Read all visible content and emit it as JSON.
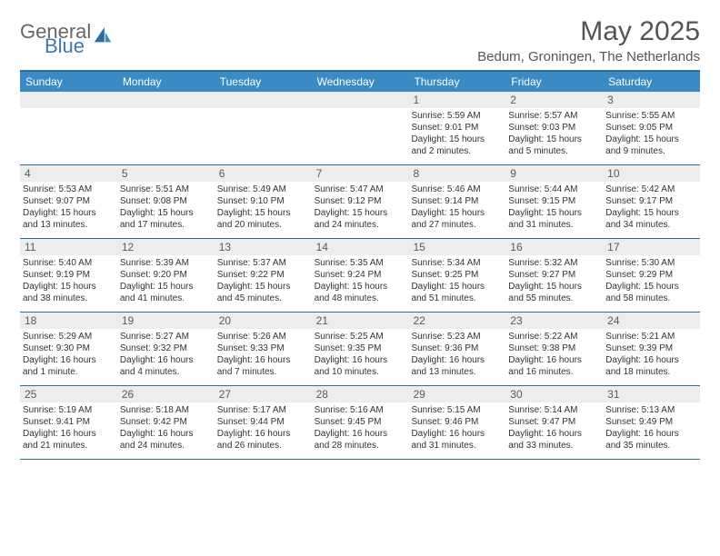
{
  "logo": {
    "text1": "General",
    "text2": "Blue"
  },
  "title": "May 2025",
  "location": "Bedum, Groningen, The Netherlands",
  "colors": {
    "header_bg": "#3a8ac4",
    "border": "#2e6da4",
    "daynum_bg": "#eceded",
    "text": "#333333",
    "logo_gray": "#666666",
    "logo_blue": "#3a7ab8"
  },
  "weekdays": [
    "Sunday",
    "Monday",
    "Tuesday",
    "Wednesday",
    "Thursday",
    "Friday",
    "Saturday"
  ],
  "weeks": [
    [
      {
        "day": "",
        "sunrise": "",
        "sunset": "",
        "daylight": ""
      },
      {
        "day": "",
        "sunrise": "",
        "sunset": "",
        "daylight": ""
      },
      {
        "day": "",
        "sunrise": "",
        "sunset": "",
        "daylight": ""
      },
      {
        "day": "",
        "sunrise": "",
        "sunset": "",
        "daylight": ""
      },
      {
        "day": "1",
        "sunrise": "Sunrise: 5:59 AM",
        "sunset": "Sunset: 9:01 PM",
        "daylight": "Daylight: 15 hours and 2 minutes."
      },
      {
        "day": "2",
        "sunrise": "Sunrise: 5:57 AM",
        "sunset": "Sunset: 9:03 PM",
        "daylight": "Daylight: 15 hours and 5 minutes."
      },
      {
        "day": "3",
        "sunrise": "Sunrise: 5:55 AM",
        "sunset": "Sunset: 9:05 PM",
        "daylight": "Daylight: 15 hours and 9 minutes."
      }
    ],
    [
      {
        "day": "4",
        "sunrise": "Sunrise: 5:53 AM",
        "sunset": "Sunset: 9:07 PM",
        "daylight": "Daylight: 15 hours and 13 minutes."
      },
      {
        "day": "5",
        "sunrise": "Sunrise: 5:51 AM",
        "sunset": "Sunset: 9:08 PM",
        "daylight": "Daylight: 15 hours and 17 minutes."
      },
      {
        "day": "6",
        "sunrise": "Sunrise: 5:49 AM",
        "sunset": "Sunset: 9:10 PM",
        "daylight": "Daylight: 15 hours and 20 minutes."
      },
      {
        "day": "7",
        "sunrise": "Sunrise: 5:47 AM",
        "sunset": "Sunset: 9:12 PM",
        "daylight": "Daylight: 15 hours and 24 minutes."
      },
      {
        "day": "8",
        "sunrise": "Sunrise: 5:46 AM",
        "sunset": "Sunset: 9:14 PM",
        "daylight": "Daylight: 15 hours and 27 minutes."
      },
      {
        "day": "9",
        "sunrise": "Sunrise: 5:44 AM",
        "sunset": "Sunset: 9:15 PM",
        "daylight": "Daylight: 15 hours and 31 minutes."
      },
      {
        "day": "10",
        "sunrise": "Sunrise: 5:42 AM",
        "sunset": "Sunset: 9:17 PM",
        "daylight": "Daylight: 15 hours and 34 minutes."
      }
    ],
    [
      {
        "day": "11",
        "sunrise": "Sunrise: 5:40 AM",
        "sunset": "Sunset: 9:19 PM",
        "daylight": "Daylight: 15 hours and 38 minutes."
      },
      {
        "day": "12",
        "sunrise": "Sunrise: 5:39 AM",
        "sunset": "Sunset: 9:20 PM",
        "daylight": "Daylight: 15 hours and 41 minutes."
      },
      {
        "day": "13",
        "sunrise": "Sunrise: 5:37 AM",
        "sunset": "Sunset: 9:22 PM",
        "daylight": "Daylight: 15 hours and 45 minutes."
      },
      {
        "day": "14",
        "sunrise": "Sunrise: 5:35 AM",
        "sunset": "Sunset: 9:24 PM",
        "daylight": "Daylight: 15 hours and 48 minutes."
      },
      {
        "day": "15",
        "sunrise": "Sunrise: 5:34 AM",
        "sunset": "Sunset: 9:25 PM",
        "daylight": "Daylight: 15 hours and 51 minutes."
      },
      {
        "day": "16",
        "sunrise": "Sunrise: 5:32 AM",
        "sunset": "Sunset: 9:27 PM",
        "daylight": "Daylight: 15 hours and 55 minutes."
      },
      {
        "day": "17",
        "sunrise": "Sunrise: 5:30 AM",
        "sunset": "Sunset: 9:29 PM",
        "daylight": "Daylight: 15 hours and 58 minutes."
      }
    ],
    [
      {
        "day": "18",
        "sunrise": "Sunrise: 5:29 AM",
        "sunset": "Sunset: 9:30 PM",
        "daylight": "Daylight: 16 hours and 1 minute."
      },
      {
        "day": "19",
        "sunrise": "Sunrise: 5:27 AM",
        "sunset": "Sunset: 9:32 PM",
        "daylight": "Daylight: 16 hours and 4 minutes."
      },
      {
        "day": "20",
        "sunrise": "Sunrise: 5:26 AM",
        "sunset": "Sunset: 9:33 PM",
        "daylight": "Daylight: 16 hours and 7 minutes."
      },
      {
        "day": "21",
        "sunrise": "Sunrise: 5:25 AM",
        "sunset": "Sunset: 9:35 PM",
        "daylight": "Daylight: 16 hours and 10 minutes."
      },
      {
        "day": "22",
        "sunrise": "Sunrise: 5:23 AM",
        "sunset": "Sunset: 9:36 PM",
        "daylight": "Daylight: 16 hours and 13 minutes."
      },
      {
        "day": "23",
        "sunrise": "Sunrise: 5:22 AM",
        "sunset": "Sunset: 9:38 PM",
        "daylight": "Daylight: 16 hours and 16 minutes."
      },
      {
        "day": "24",
        "sunrise": "Sunrise: 5:21 AM",
        "sunset": "Sunset: 9:39 PM",
        "daylight": "Daylight: 16 hours and 18 minutes."
      }
    ],
    [
      {
        "day": "25",
        "sunrise": "Sunrise: 5:19 AM",
        "sunset": "Sunset: 9:41 PM",
        "daylight": "Daylight: 16 hours and 21 minutes."
      },
      {
        "day": "26",
        "sunrise": "Sunrise: 5:18 AM",
        "sunset": "Sunset: 9:42 PM",
        "daylight": "Daylight: 16 hours and 24 minutes."
      },
      {
        "day": "27",
        "sunrise": "Sunrise: 5:17 AM",
        "sunset": "Sunset: 9:44 PM",
        "daylight": "Daylight: 16 hours and 26 minutes."
      },
      {
        "day": "28",
        "sunrise": "Sunrise: 5:16 AM",
        "sunset": "Sunset: 9:45 PM",
        "daylight": "Daylight: 16 hours and 28 minutes."
      },
      {
        "day": "29",
        "sunrise": "Sunrise: 5:15 AM",
        "sunset": "Sunset: 9:46 PM",
        "daylight": "Daylight: 16 hours and 31 minutes."
      },
      {
        "day": "30",
        "sunrise": "Sunrise: 5:14 AM",
        "sunset": "Sunset: 9:47 PM",
        "daylight": "Daylight: 16 hours and 33 minutes."
      },
      {
        "day": "31",
        "sunrise": "Sunrise: 5:13 AM",
        "sunset": "Sunset: 9:49 PM",
        "daylight": "Daylight: 16 hours and 35 minutes."
      }
    ]
  ]
}
